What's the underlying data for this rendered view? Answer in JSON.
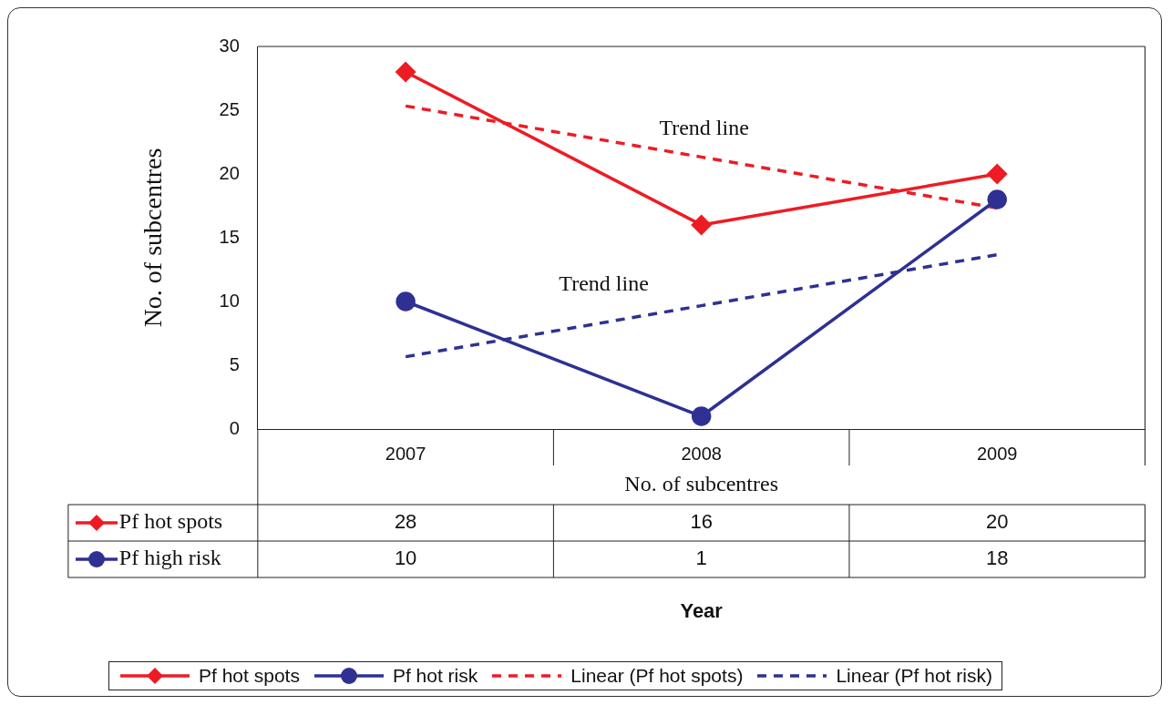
{
  "chart_data": {
    "type": "line",
    "ylabel": "No. of subcentres",
    "categories": [
      "2007",
      "2008",
      "2009"
    ],
    "series": [
      {
        "name": "Pf hot spots",
        "color": "#ed1c24",
        "values": [
          28,
          16,
          20
        ],
        "value_labels": [
          "28",
          "16",
          "20"
        ],
        "marker": "diamond",
        "line_style": "solid"
      },
      {
        "name": "Pf hot risk",
        "color": "#2e3192",
        "values": [
          10,
          1,
          18
        ],
        "value_labels": [
          "10",
          "1",
          "18"
        ],
        "marker": "circle",
        "line_style": "solid"
      },
      {
        "name": "Linear (Pf hot spots)",
        "color": "#ed1c24",
        "values": [
          25.33,
          21.33,
          17.33
        ],
        "marker": "none",
        "line_style": "dashed"
      },
      {
        "name": "Linear (Pf hot risk)",
        "color": "#2e3192",
        "values": [
          5.67,
          9.67,
          13.67
        ],
        "marker": "none",
        "line_style": "dashed"
      }
    ],
    "ylim": [
      0,
      30
    ],
    "yticks": [
      0,
      5,
      10,
      15,
      20,
      25,
      30
    ],
    "grid": false,
    "legend": "bottom",
    "annotations": [
      "No. of subcentres",
      "Pf hot spots",
      "Pf high risk",
      "Trend line",
      "Trend line",
      "Year"
    ]
  }
}
